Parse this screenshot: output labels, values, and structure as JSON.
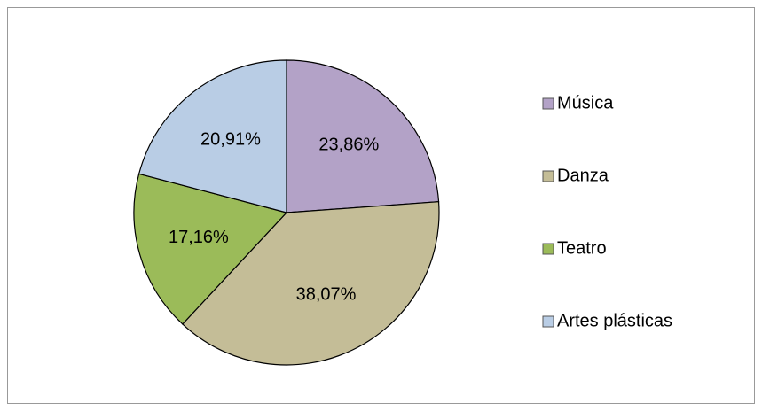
{
  "chart_data": {
    "type": "pie",
    "categories": [
      "Música",
      "Danza",
      "Teatro",
      "Artes plásticas"
    ],
    "values": [
      23.86,
      38.07,
      17.16,
      20.91
    ],
    "value_labels": [
      "23,86%",
      "38,07%",
      "17,16%",
      "20,91%"
    ],
    "colors": [
      "#b3a2c7",
      "#c4bd97",
      "#9bbb59",
      "#b9cde5"
    ],
    "legend": "right"
  }
}
